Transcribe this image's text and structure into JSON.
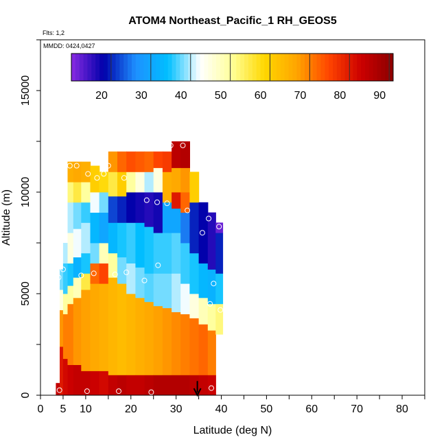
{
  "chart_data": {
    "type": "heatmap",
    "title": "ATOM4 Northeast_Pacific_1 RH_GEOS5",
    "flights_note": "Flts: 1,2",
    "dates_note": "MMDD: 0424,0427",
    "xlabel": "Latitude (deg N)",
    "ylabel": "Altitude (m)",
    "xlim": [
      0,
      85
    ],
    "ylim": [
      0,
      17500
    ],
    "x_ticks": [
      0,
      5,
      10,
      20,
      30,
      40,
      50,
      60,
      70,
      80
    ],
    "y_ticks": [
      0,
      5000,
      10000,
      15000
    ],
    "colorbar": {
      "range": [
        10,
        91
      ],
      "ticks": [
        20,
        30,
        40,
        50,
        60,
        70,
        80,
        90
      ],
      "colors": [
        "#8a2be2",
        "#0000aa",
        "#1e90ff",
        "#00bfff",
        "#ffffff",
        "#ffff99",
        "#ffd700",
        "#ffa500",
        "#ff4500",
        "#cc0000",
        "#8b0000"
      ]
    },
    "curtain_columns": [
      {
        "lat": 4.0,
        "top": 600,
        "layers": [
          {
            "bot": 0,
            "top": 600,
            "rh": 84
          }
        ]
      },
      {
        "lat": 4.5,
        "top": 6200,
        "layers": [
          {
            "bot": 0,
            "top": 2400,
            "rh": 80
          },
          {
            "bot": 2400,
            "top": 4200,
            "rh": 68
          },
          {
            "bot": 4200,
            "top": 5200,
            "rh": 45
          },
          {
            "bot": 5200,
            "top": 6200,
            "rh": 38
          }
        ]
      },
      {
        "lat": 5.5,
        "top": 7500,
        "layers": [
          {
            "bot": 0,
            "top": 1800,
            "rh": 82
          },
          {
            "bot": 1800,
            "top": 4000,
            "rh": 70
          },
          {
            "bot": 4000,
            "top": 5000,
            "rh": 50
          },
          {
            "bot": 5000,
            "top": 6500,
            "rh": 36
          },
          {
            "bot": 6500,
            "top": 7500,
            "rh": 40
          }
        ]
      },
      {
        "lat": 6.5,
        "top": 11500,
        "layers": [
          {
            "bot": 0,
            "top": 1500,
            "rh": 83
          },
          {
            "bot": 1500,
            "top": 4500,
            "rh": 70
          },
          {
            "bot": 4500,
            "top": 5400,
            "rh": 50
          },
          {
            "bot": 5400,
            "top": 6500,
            "rh": 35
          },
          {
            "bot": 6500,
            "top": 8000,
            "rh": 45
          },
          {
            "bot": 8000,
            "top": 9500,
            "rh": 40
          },
          {
            "bot": 9500,
            "top": 10500,
            "rh": 52
          },
          {
            "bot": 10500,
            "top": 11500,
            "rh": 65
          }
        ]
      },
      {
        "lat": 8.0,
        "top": 11500,
        "layers": [
          {
            "bot": 0,
            "top": 1500,
            "rh": 84
          },
          {
            "bot": 1500,
            "top": 4800,
            "rh": 68
          },
          {
            "bot": 4800,
            "top": 5800,
            "rh": 48
          },
          {
            "bot": 5800,
            "top": 6800,
            "rh": 32
          },
          {
            "bot": 6800,
            "top": 8200,
            "rh": 42
          },
          {
            "bot": 8200,
            "top": 9500,
            "rh": 38
          },
          {
            "bot": 9500,
            "top": 10500,
            "rh": 55
          },
          {
            "bot": 10500,
            "top": 11500,
            "rh": 66
          }
        ]
      },
      {
        "lat": 10.0,
        "top": 11500,
        "layers": [
          {
            "bot": 0,
            "top": 1200,
            "rh": 84
          },
          {
            "bot": 1200,
            "top": 5200,
            "rh": 67
          },
          {
            "bot": 5200,
            "top": 6000,
            "rh": 55
          },
          {
            "bot": 6000,
            "top": 7000,
            "rh": 35
          },
          {
            "bot": 7000,
            "top": 8500,
            "rh": 40
          },
          {
            "bot": 8500,
            "top": 9500,
            "rh": 36
          },
          {
            "bot": 9500,
            "top": 10500,
            "rh": 50
          },
          {
            "bot": 10500,
            "top": 11500,
            "rh": 65
          }
        ]
      },
      {
        "lat": 12.0,
        "top": 11300,
        "layers": [
          {
            "bot": 0,
            "top": 1200,
            "rh": 83
          },
          {
            "bot": 1200,
            "top": 5500,
            "rh": 66
          },
          {
            "bot": 5500,
            "top": 6500,
            "rh": 72
          },
          {
            "bot": 6500,
            "top": 7500,
            "rh": 38
          },
          {
            "bot": 7500,
            "top": 9000,
            "rh": 33
          },
          {
            "bot": 9000,
            "top": 10000,
            "rh": 42
          },
          {
            "bot": 10000,
            "top": 11300,
            "rh": 60
          }
        ]
      },
      {
        "lat": 14.0,
        "top": 11000,
        "layers": [
          {
            "bot": 0,
            "top": 1200,
            "rh": 82
          },
          {
            "bot": 1200,
            "top": 5500,
            "rh": 65
          },
          {
            "bot": 5500,
            "top": 6500,
            "rh": 75
          },
          {
            "bot": 6500,
            "top": 7500,
            "rh": 48
          },
          {
            "bot": 7500,
            "top": 9000,
            "rh": 30
          },
          {
            "bot": 9000,
            "top": 10000,
            "rh": 38
          },
          {
            "bot": 10000,
            "top": 11000,
            "rh": 58
          }
        ]
      },
      {
        "lat": 16.0,
        "top": 12000,
        "layers": [
          {
            "bot": 0,
            "top": 1000,
            "rh": 84
          },
          {
            "bot": 1000,
            "top": 5800,
            "rh": 64
          },
          {
            "bot": 5800,
            "top": 7000,
            "rh": 50
          },
          {
            "bot": 7000,
            "top": 8500,
            "rh": 33
          },
          {
            "bot": 8500,
            "top": 9800,
            "rh": 22
          },
          {
            "bot": 9800,
            "top": 11000,
            "rh": 55
          },
          {
            "bot": 11000,
            "top": 12000,
            "rh": 68
          }
        ]
      },
      {
        "lat": 18.0,
        "top": 12000,
        "layers": [
          {
            "bot": 0,
            "top": 1000,
            "rh": 85
          },
          {
            "bot": 1000,
            "top": 5500,
            "rh": 63
          },
          {
            "bot": 5500,
            "top": 6800,
            "rh": 38
          },
          {
            "bot": 6800,
            "top": 8500,
            "rh": 35
          },
          {
            "bot": 8500,
            "top": 9800,
            "rh": 20
          },
          {
            "bot": 9800,
            "top": 11000,
            "rh": 60
          },
          {
            "bot": 11000,
            "top": 12000,
            "rh": 72
          }
        ]
      },
      {
        "lat": 20.0,
        "top": 12000,
        "layers": [
          {
            "bot": 0,
            "top": 1000,
            "rh": 84
          },
          {
            "bot": 1000,
            "top": 5000,
            "rh": 64
          },
          {
            "bot": 5000,
            "top": 6500,
            "rh": 40
          },
          {
            "bot": 6500,
            "top": 8500,
            "rh": 36
          },
          {
            "bot": 8500,
            "top": 10000,
            "rh": 18
          },
          {
            "bot": 10000,
            "top": 11000,
            "rh": 50
          },
          {
            "bot": 11000,
            "top": 12000,
            "rh": 74
          }
        ]
      },
      {
        "lat": 22.0,
        "top": 12000,
        "layers": [
          {
            "bot": 0,
            "top": 1000,
            "rh": 84
          },
          {
            "bot": 1000,
            "top": 4800,
            "rh": 65
          },
          {
            "bot": 4800,
            "top": 6300,
            "rh": 38
          },
          {
            "bot": 6300,
            "top": 8500,
            "rh": 34
          },
          {
            "bot": 8500,
            "top": 10000,
            "rh": 17
          },
          {
            "bot": 10000,
            "top": 11000,
            "rh": 45
          },
          {
            "bot": 11000,
            "top": 12000,
            "rh": 73
          }
        ]
      },
      {
        "lat": 24.0,
        "top": 12000,
        "layers": [
          {
            "bot": 0,
            "top": 1000,
            "rh": 85
          },
          {
            "bot": 1000,
            "top": 4600,
            "rh": 66
          },
          {
            "bot": 4600,
            "top": 6000,
            "rh": 37
          },
          {
            "bot": 6000,
            "top": 8300,
            "rh": 35
          },
          {
            "bot": 8300,
            "top": 10000,
            "rh": 16
          },
          {
            "bot": 10000,
            "top": 11000,
            "rh": 40
          },
          {
            "bot": 11000,
            "top": 12000,
            "rh": 72
          }
        ]
      },
      {
        "lat": 26.0,
        "top": 12000,
        "layers": [
          {
            "bot": 0,
            "top": 1000,
            "rh": 86
          },
          {
            "bot": 1000,
            "top": 4400,
            "rh": 67
          },
          {
            "bot": 4400,
            "top": 6000,
            "rh": 38
          },
          {
            "bot": 6000,
            "top": 8000,
            "rh": 36
          },
          {
            "bot": 8000,
            "top": 10000,
            "rh": 17
          },
          {
            "bot": 10000,
            "top": 11200,
            "rh": 45
          },
          {
            "bot": 11200,
            "top": 12000,
            "rh": 75
          }
        ]
      },
      {
        "lat": 28.0,
        "top": 12000,
        "layers": [
          {
            "bot": 0,
            "top": 1000,
            "rh": 86
          },
          {
            "bot": 1000,
            "top": 4300,
            "rh": 68
          },
          {
            "bot": 4300,
            "top": 6000,
            "rh": 38
          },
          {
            "bot": 6000,
            "top": 8000,
            "rh": 36
          },
          {
            "bot": 8000,
            "top": 9500,
            "rh": 30
          },
          {
            "bot": 9500,
            "top": 11000,
            "rh": 65
          },
          {
            "bot": 11000,
            "top": 12000,
            "rh": 76
          }
        ]
      },
      {
        "lat": 30.0,
        "top": 12500,
        "layers": [
          {
            "bot": 0,
            "top": 1000,
            "rh": 86
          },
          {
            "bot": 1000,
            "top": 4100,
            "rh": 69
          },
          {
            "bot": 4100,
            "top": 6000,
            "rh": 40
          },
          {
            "bot": 6000,
            "top": 8000,
            "rh": 37
          },
          {
            "bot": 8000,
            "top": 9200,
            "rh": 30
          },
          {
            "bot": 9200,
            "top": 10000,
            "rh": 80
          },
          {
            "bot": 10000,
            "top": 11200,
            "rh": 66
          },
          {
            "bot": 11200,
            "top": 12500,
            "rh": 85
          }
        ]
      },
      {
        "lat": 32.0,
        "top": 12500,
        "layers": [
          {
            "bot": 0,
            "top": 1000,
            "rh": 86
          },
          {
            "bot": 1000,
            "top": 4000,
            "rh": 70
          },
          {
            "bot": 4000,
            "top": 5500,
            "rh": 42
          },
          {
            "bot": 5500,
            "top": 7500,
            "rh": 36
          },
          {
            "bot": 7500,
            "top": 9000,
            "rh": 25
          },
          {
            "bot": 9000,
            "top": 10000,
            "rh": 72
          },
          {
            "bot": 10000,
            "top": 11200,
            "rh": 68
          },
          {
            "bot": 11200,
            "top": 12500,
            "rh": 86
          }
        ]
      },
      {
        "lat": 34.0,
        "top": 11000,
        "layers": [
          {
            "bot": 0,
            "top": 1000,
            "rh": 85
          },
          {
            "bot": 1000,
            "top": 3800,
            "rh": 71
          },
          {
            "bot": 3800,
            "top": 5000,
            "rh": 45
          },
          {
            "bot": 5000,
            "top": 7000,
            "rh": 35
          },
          {
            "bot": 7000,
            "top": 9500,
            "rh": 20
          },
          {
            "bot": 9500,
            "top": 11000,
            "rh": 60
          }
        ]
      },
      {
        "lat": 36.0,
        "top": 9500,
        "layers": [
          {
            "bot": 0,
            "top": 1000,
            "rh": 84
          },
          {
            "bot": 1000,
            "top": 3500,
            "rh": 72
          },
          {
            "bot": 3500,
            "top": 4800,
            "rh": 48
          },
          {
            "bot": 4800,
            "top": 6500,
            "rh": 33
          },
          {
            "bot": 6500,
            "top": 9500,
            "rh": 18
          }
        ]
      },
      {
        "lat": 38.0,
        "top": 9000,
        "layers": [
          {
            "bot": 0,
            "top": 1000,
            "rh": 83
          },
          {
            "bot": 1000,
            "top": 3200,
            "rh": 70
          },
          {
            "bot": 3200,
            "top": 4500,
            "rh": 50
          },
          {
            "bot": 4500,
            "top": 6200,
            "rh": 32
          },
          {
            "bot": 6200,
            "top": 9000,
            "rh": 16
          }
        ]
      },
      {
        "lat": 39.5,
        "top": 8500,
        "layers": [
          {
            "bot": 3000,
            "top": 4500,
            "rh": 52
          },
          {
            "bot": 4500,
            "top": 6000,
            "rh": 35
          },
          {
            "bot": 6000,
            "top": 8000,
            "rh": 20
          },
          {
            "bot": 8000,
            "top": 8500,
            "rh": 12
          }
        ]
      }
    ],
    "flight_points": [
      {
        "lat": 4.2,
        "alt": 250
      },
      {
        "lat": 10.3,
        "alt": 200
      },
      {
        "lat": 17.3,
        "alt": 200
      },
      {
        "lat": 24.5,
        "alt": 150
      },
      {
        "lat": 37.8,
        "alt": 350
      },
      {
        "lat": 4.0,
        "alt": 5800
      },
      {
        "lat": 5.0,
        "alt": 6200
      },
      {
        "lat": 9.0,
        "alt": 5900
      },
      {
        "lat": 11.8,
        "alt": 6000
      },
      {
        "lat": 16.5,
        "alt": 5950
      },
      {
        "lat": 19.0,
        "alt": 6050
      },
      {
        "lat": 23.0,
        "alt": 5650
      },
      {
        "lat": 26.0,
        "alt": 6400
      },
      {
        "lat": 37.5,
        "alt": 4500
      },
      {
        "lat": 38.3,
        "alt": 5500
      },
      {
        "lat": 39.8,
        "alt": 4200
      },
      {
        "lat": 5.5,
        "alt": 11300
      },
      {
        "lat": 6.5,
        "alt": 11300
      },
      {
        "lat": 8.0,
        "alt": 11300
      },
      {
        "lat": 10.5,
        "alt": 10900
      },
      {
        "lat": 12.5,
        "alt": 10700
      },
      {
        "lat": 14.0,
        "alt": 10900
      },
      {
        "lat": 15.0,
        "alt": 11300
      },
      {
        "lat": 18.5,
        "alt": 10700
      },
      {
        "lat": 23.5,
        "alt": 9600
      },
      {
        "lat": 25.8,
        "alt": 9500
      },
      {
        "lat": 28.0,
        "alt": 9450
      },
      {
        "lat": 32.5,
        "alt": 9100
      },
      {
        "lat": 35.8,
        "alt": 8000
      },
      {
        "lat": 37.2,
        "alt": 8700
      },
      {
        "lat": 39.5,
        "alt": 8300
      },
      {
        "lat": 28.8,
        "alt": 12300
      },
      {
        "lat": 31.5,
        "alt": 12300
      }
    ],
    "arrow_marker": {
      "lat": 34.7,
      "alt_from": 700,
      "alt_to": 0
    }
  }
}
